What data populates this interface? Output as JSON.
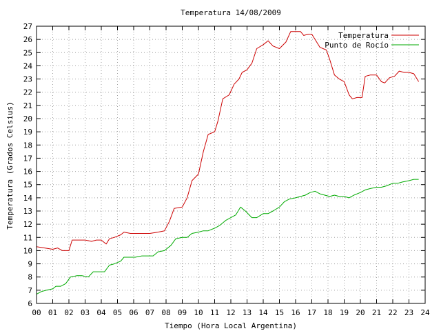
{
  "chart_data": {
    "type": "line",
    "title": "Temperatura 14/08/2009",
    "xlabel": "Tiempo (Hora Local Argentina)",
    "ylabel": "Temperatura (Grados Celsius)",
    "xlim": [
      0,
      24
    ],
    "ylim": [
      6,
      27
    ],
    "x_ticks": [
      "00",
      "01",
      "02",
      "03",
      "04",
      "05",
      "06",
      "07",
      "08",
      "09",
      "10",
      "11",
      "12",
      "13",
      "14",
      "15",
      "16",
      "17",
      "18",
      "19",
      "20",
      "21",
      "22",
      "23",
      "24"
    ],
    "y_ticks": [
      "6",
      "7",
      "8",
      "9",
      "10",
      "11",
      "12",
      "13",
      "14",
      "15",
      "16",
      "17",
      "18",
      "19",
      "20",
      "21",
      "22",
      "23",
      "24",
      "25",
      "26",
      "27"
    ],
    "grid": true,
    "legend_position": "top-right",
    "colors": {
      "Temperatura": "#cc0000",
      "Punto de Rocío": "#00aa00"
    },
    "series": [
      {
        "name": "Temperatura",
        "points": [
          [
            0.0,
            10.3
          ],
          [
            0.5,
            10.2
          ],
          [
            1.0,
            10.1
          ],
          [
            1.3,
            10.2
          ],
          [
            1.6,
            10.0
          ],
          [
            2.0,
            10.0
          ],
          [
            2.2,
            10.8
          ],
          [
            2.6,
            10.8
          ],
          [
            3.0,
            10.8
          ],
          [
            3.4,
            10.7
          ],
          [
            3.7,
            10.8
          ],
          [
            4.0,
            10.8
          ],
          [
            4.3,
            10.5
          ],
          [
            4.5,
            10.9
          ],
          [
            4.8,
            11.0
          ],
          [
            5.2,
            11.2
          ],
          [
            5.4,
            11.4
          ],
          [
            5.8,
            11.3
          ],
          [
            6.2,
            11.3
          ],
          [
            6.5,
            11.3
          ],
          [
            7.0,
            11.3
          ],
          [
            7.5,
            11.4
          ],
          [
            7.9,
            11.5
          ],
          [
            8.2,
            12.2
          ],
          [
            8.5,
            13.2
          ],
          [
            9.0,
            13.3
          ],
          [
            9.3,
            14.0
          ],
          [
            9.6,
            15.3
          ],
          [
            10.0,
            15.8
          ],
          [
            10.3,
            17.5
          ],
          [
            10.6,
            18.8
          ],
          [
            11.0,
            19.0
          ],
          [
            11.2,
            19.8
          ],
          [
            11.5,
            21.5
          ],
          [
            11.9,
            21.8
          ],
          [
            12.2,
            22.6
          ],
          [
            12.5,
            23.0
          ],
          [
            12.7,
            23.5
          ],
          [
            13.0,
            23.7
          ],
          [
            13.3,
            24.2
          ],
          [
            13.6,
            25.3
          ],
          [
            14.0,
            25.6
          ],
          [
            14.3,
            25.9
          ],
          [
            14.6,
            25.5
          ],
          [
            15.0,
            25.3
          ],
          [
            15.4,
            25.8
          ],
          [
            15.7,
            26.6
          ],
          [
            16.0,
            26.6
          ],
          [
            16.3,
            26.6
          ],
          [
            16.5,
            26.3
          ],
          [
            16.8,
            26.4
          ],
          [
            17.0,
            26.4
          ],
          [
            17.2,
            26.0
          ],
          [
            17.5,
            25.4
          ],
          [
            17.9,
            25.2
          ],
          [
            18.1,
            24.5
          ],
          [
            18.4,
            23.3
          ],
          [
            18.7,
            23.0
          ],
          [
            19.0,
            22.8
          ],
          [
            19.3,
            21.8
          ],
          [
            19.5,
            21.5
          ],
          [
            19.8,
            21.6
          ],
          [
            20.1,
            21.6
          ],
          [
            20.3,
            23.2
          ],
          [
            20.6,
            23.3
          ],
          [
            21.0,
            23.3
          ],
          [
            21.3,
            22.8
          ],
          [
            21.5,
            22.7
          ],
          [
            21.8,
            23.1
          ],
          [
            22.1,
            23.2
          ],
          [
            22.4,
            23.6
          ],
          [
            22.7,
            23.5
          ],
          [
            23.0,
            23.5
          ],
          [
            23.3,
            23.4
          ],
          [
            23.6,
            22.8
          ]
        ]
      },
      {
        "name": "Punto de Rocío",
        "points": [
          [
            0.0,
            6.7
          ],
          [
            0.3,
            6.9
          ],
          [
            0.6,
            7.0
          ],
          [
            1.0,
            7.1
          ],
          [
            1.2,
            7.3
          ],
          [
            1.5,
            7.3
          ],
          [
            1.8,
            7.5
          ],
          [
            2.1,
            8.0
          ],
          [
            2.5,
            8.1
          ],
          [
            2.8,
            8.1
          ],
          [
            3.2,
            8.0
          ],
          [
            3.5,
            8.4
          ],
          [
            3.8,
            8.4
          ],
          [
            4.2,
            8.4
          ],
          [
            4.5,
            8.9
          ],
          [
            4.8,
            9.0
          ],
          [
            5.2,
            9.2
          ],
          [
            5.4,
            9.5
          ],
          [
            5.8,
            9.5
          ],
          [
            6.1,
            9.5
          ],
          [
            6.5,
            9.6
          ],
          [
            6.9,
            9.6
          ],
          [
            7.2,
            9.6
          ],
          [
            7.5,
            9.9
          ],
          [
            7.9,
            10.0
          ],
          [
            8.3,
            10.4
          ],
          [
            8.6,
            10.9
          ],
          [
            9.0,
            11.0
          ],
          [
            9.3,
            11.0
          ],
          [
            9.6,
            11.3
          ],
          [
            10.0,
            11.4
          ],
          [
            10.3,
            11.5
          ],
          [
            10.6,
            11.5
          ],
          [
            11.0,
            11.7
          ],
          [
            11.3,
            11.9
          ],
          [
            11.7,
            12.3
          ],
          [
            12.0,
            12.5
          ],
          [
            12.3,
            12.7
          ],
          [
            12.6,
            13.3
          ],
          [
            12.9,
            13.0
          ],
          [
            13.3,
            12.5
          ],
          [
            13.6,
            12.5
          ],
          [
            14.0,
            12.8
          ],
          [
            14.3,
            12.8
          ],
          [
            14.6,
            13.0
          ],
          [
            15.0,
            13.3
          ],
          [
            15.3,
            13.7
          ],
          [
            15.6,
            13.9
          ],
          [
            16.0,
            14.0
          ],
          [
            16.3,
            14.1
          ],
          [
            16.6,
            14.2
          ],
          [
            16.9,
            14.4
          ],
          [
            17.2,
            14.5
          ],
          [
            17.5,
            14.3
          ],
          [
            17.8,
            14.2
          ],
          [
            18.1,
            14.1
          ],
          [
            18.4,
            14.2
          ],
          [
            18.7,
            14.1
          ],
          [
            19.0,
            14.1
          ],
          [
            19.3,
            14.0
          ],
          [
            19.6,
            14.2
          ],
          [
            20.0,
            14.4
          ],
          [
            20.3,
            14.6
          ],
          [
            20.6,
            14.7
          ],
          [
            21.0,
            14.8
          ],
          [
            21.3,
            14.8
          ],
          [
            21.6,
            14.9
          ],
          [
            22.0,
            15.1
          ],
          [
            22.3,
            15.1
          ],
          [
            22.6,
            15.2
          ],
          [
            23.0,
            15.3
          ],
          [
            23.3,
            15.4
          ],
          [
            23.6,
            15.4
          ]
        ]
      }
    ]
  }
}
